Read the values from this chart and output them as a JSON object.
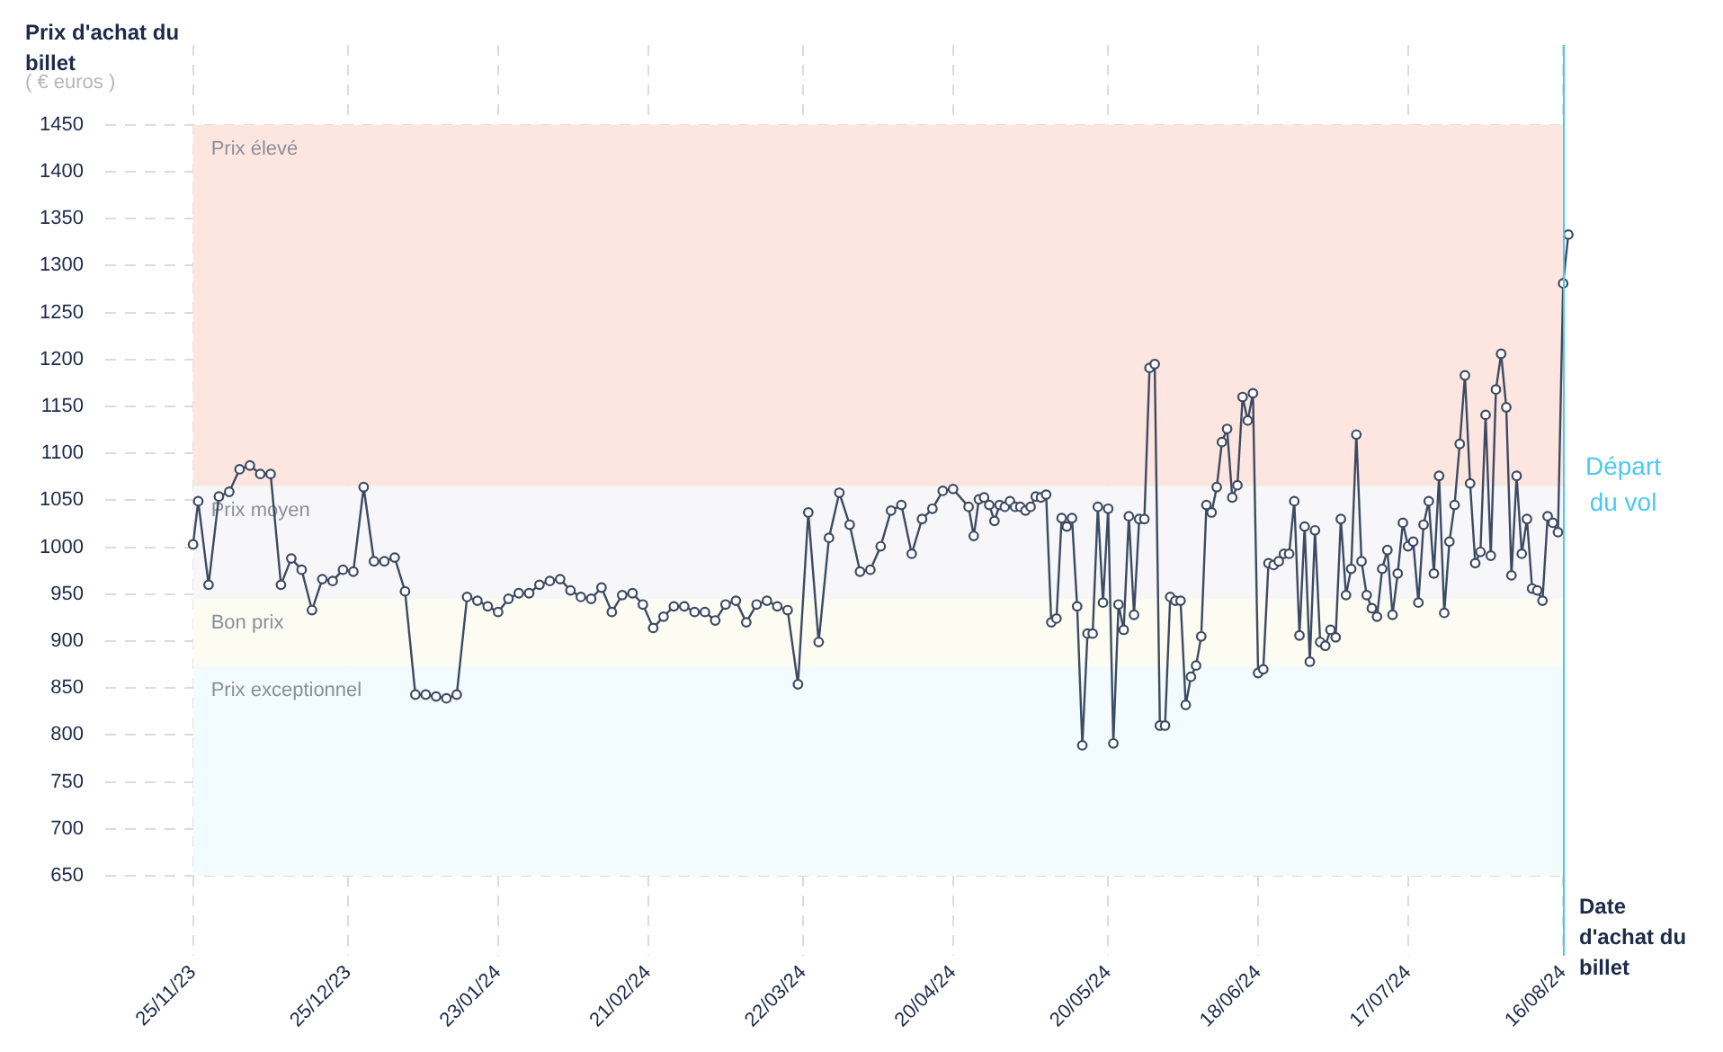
{
  "chart_data": {
    "type": "line",
    "ylabel": "Prix d'achat du billet",
    "xlabel": "Date d'achat du billet",
    "annotations": [
      "( € euros )"
    ],
    "color": "#3d4a63",
    "marker": "circle",
    "grid": true,
    "legend": false,
    "x": [
      "2023-11-25",
      "2023-11-26",
      "2023-11-28",
      "2023-11-30",
      "2023-12-02",
      "2023-12-04",
      "2023-12-06",
      "2023-12-08",
      "2023-12-10",
      "2023-12-12",
      "2023-12-14",
      "2023-12-16",
      "2023-12-18",
      "2023-12-20",
      "2023-12-22",
      "2023-12-24",
      "2023-12-26",
      "2023-12-28",
      "2023-12-30",
      "2024-01-01",
      "2024-01-03",
      "2024-01-05",
      "2024-01-07",
      "2024-01-09",
      "2024-01-11",
      "2024-01-13",
      "2024-01-15",
      "2024-01-17",
      "2024-01-19",
      "2024-01-21",
      "2024-01-23",
      "2024-01-25",
      "2024-01-27",
      "2024-01-29",
      "2024-01-31",
      "2024-02-02",
      "2024-02-04",
      "2024-02-06",
      "2024-02-08",
      "2024-02-10",
      "2024-02-12",
      "2024-02-14",
      "2024-02-16",
      "2024-02-18",
      "2024-02-20",
      "2024-02-22",
      "2024-02-24",
      "2024-02-26",
      "2024-02-28",
      "2024-03-01",
      "2024-03-03",
      "2024-03-05",
      "2024-03-07",
      "2024-03-09",
      "2024-03-11",
      "2024-03-13",
      "2024-03-15",
      "2024-03-17",
      "2024-03-19",
      "2024-03-21",
      "2024-03-23",
      "2024-03-25",
      "2024-03-27",
      "2024-03-29",
      "2024-03-31",
      "2024-04-02",
      "2024-04-04",
      "2024-04-06",
      "2024-04-08",
      "2024-04-10",
      "2024-04-12",
      "2024-04-14",
      "2024-04-16",
      "2024-04-18",
      "2024-04-20",
      "2024-04-23",
      "2024-04-24",
      "2024-04-25",
      "2024-04-26",
      "2024-04-27",
      "2024-04-28",
      "2024-04-29",
      "2024-04-30",
      "2024-05-01",
      "2024-05-02",
      "2024-05-03",
      "2024-05-04",
      "2024-05-05",
      "2024-05-06",
      "2024-05-07",
      "2024-05-08",
      "2024-05-09",
      "2024-05-10",
      "2024-05-11",
      "2024-05-12",
      "2024-05-13",
      "2024-05-14",
      "2024-05-15",
      "2024-05-16",
      "2024-05-17",
      "2024-05-18",
      "2024-05-19",
      "2024-05-20",
      "2024-05-21",
      "2024-05-22",
      "2024-05-23",
      "2024-05-24",
      "2024-05-25",
      "2024-05-26",
      "2024-05-27",
      "2024-05-28",
      "2024-05-29",
      "2024-05-30",
      "2024-05-31",
      "2024-06-01",
      "2024-06-02",
      "2024-06-03",
      "2024-06-04",
      "2024-06-05",
      "2024-06-06",
      "2024-06-07",
      "2024-06-08",
      "2024-06-09",
      "2024-06-10",
      "2024-06-11",
      "2024-06-12",
      "2024-06-13",
      "2024-06-14",
      "2024-06-15",
      "2024-06-16",
      "2024-06-17",
      "2024-06-18",
      "2024-06-19",
      "2024-06-20",
      "2024-06-21",
      "2024-06-22",
      "2024-06-23",
      "2024-06-24",
      "2024-06-25",
      "2024-06-26",
      "2024-06-27",
      "2024-06-28",
      "2024-06-29",
      "2024-06-30",
      "2024-07-01",
      "2024-07-02",
      "2024-07-03",
      "2024-07-04",
      "2024-07-05",
      "2024-07-06",
      "2024-07-07",
      "2024-07-08",
      "2024-07-09",
      "2024-07-10",
      "2024-07-11",
      "2024-07-12",
      "2024-07-13",
      "2024-07-14",
      "2024-07-15",
      "2024-07-16",
      "2024-07-17",
      "2024-07-18",
      "2024-07-19",
      "2024-07-20",
      "2024-07-21",
      "2024-07-22",
      "2024-07-23",
      "2024-07-24",
      "2024-07-25",
      "2024-07-26",
      "2024-07-27",
      "2024-07-28",
      "2024-07-29",
      "2024-07-30",
      "2024-07-31",
      "2024-08-01",
      "2024-08-02",
      "2024-08-03",
      "2024-08-04",
      "2024-08-05",
      "2024-08-06",
      "2024-08-07",
      "2024-08-08",
      "2024-08-09",
      "2024-08-10",
      "2024-08-11",
      "2024-08-12",
      "2024-08-13",
      "2024-08-14",
      "2024-08-15",
      "2024-08-16",
      "2024-08-17"
    ],
    "values": [
      1003,
      1049,
      960,
      1054,
      1059,
      1083,
      1087,
      1078,
      1078,
      960,
      988,
      976,
      933,
      966,
      964,
      976,
      974,
      1064,
      985,
      985,
      989,
      953,
      843,
      843,
      841,
      839,
      843,
      947,
      943,
      937,
      931,
      945,
      951,
      951,
      960,
      964,
      966,
      954,
      947,
      945,
      957,
      931,
      949,
      951,
      939,
      914,
      926,
      937,
      937,
      931,
      931,
      922,
      939,
      943,
      920,
      939,
      943,
      937,
      933,
      854,
      1037,
      899,
      1010,
      1058,
      1024,
      974,
      976,
      1001,
      1039,
      1045,
      993,
      1030,
      1041,
      1060,
      1062,
      1043,
      1012,
      1051,
      1053,
      1045,
      1028,
      1045,
      1043,
      1049,
      1043,
      1043,
      1039,
      1043,
      1054,
      1053,
      1056,
      920,
      924,
      1031,
      1022,
      1031,
      937,
      789,
      908,
      908,
      1043,
      941,
      1041,
      791,
      939,
      912,
      1033,
      928,
      1030,
      1030,
      1191,
      1195,
      810,
      810,
      947,
      943,
      943,
      832,
      862,
      874,
      905,
      1045,
      1037,
      1064,
      1112,
      1126,
      1053,
      1066,
      1160,
      1135,
      1164,
      866,
      870,
      983,
      981,
      985,
      993,
      993,
      1049,
      906,
      1022,
      878,
      1018,
      899,
      895,
      912,
      904,
      1030,
      949,
      977,
      1120,
      985,
      949,
      935,
      926,
      977,
      997,
      928,
      972,
      1026,
      1001,
      1006,
      941,
      1024,
      1049,
      972,
      1076,
      930,
      1006,
      1045,
      1110,
      1183,
      1068,
      983,
      995,
      1141,
      991,
      1168,
      1206,
      1149,
      970,
      1076,
      993,
      1030,
      956,
      954,
      943,
      1033,
      1026,
      1016,
      1281,
      1333
    ],
    "xlim": [
      "2023-11-08",
      "2024-08-17"
    ],
    "xticks": [
      {
        "value": "2023-11-25",
        "label": "25/11/23"
      },
      {
        "value": "2023-12-25",
        "label": "25/12/23"
      },
      {
        "value": "2024-01-23",
        "label": "23/01/24"
      },
      {
        "value": "2024-02-21",
        "label": "21/02/24"
      },
      {
        "value": "2024-03-22",
        "label": "22/03/24"
      },
      {
        "value": "2024-04-20",
        "label": "20/04/24"
      },
      {
        "value": "2024-05-20",
        "label": "20/05/24"
      },
      {
        "value": "2024-06-18",
        "label": "18/06/24"
      },
      {
        "value": "2024-07-17",
        "label": "17/07/24"
      },
      {
        "value": "2024-08-16",
        "label": "16/08/24"
      }
    ],
    "ylim": [
      565,
      1535
    ],
    "yticks": [
      650,
      700,
      750,
      800,
      850,
      900,
      950,
      1000,
      1050,
      1100,
      1150,
      1200,
      1250,
      1300,
      1350,
      1400,
      1450
    ],
    "bands": [
      {
        "axis": "y",
        "from": 1065,
        "to": 1450,
        "label": "Prix élevé",
        "color": "#fde6e0"
      },
      {
        "axis": "y",
        "from": 945,
        "to": 1065,
        "label": "Prix moyen",
        "color": "#f7f7f9"
      },
      {
        "axis": "y",
        "from": 873,
        "to": 945,
        "label": "Bon prix",
        "color": "#fcfcf3"
      },
      {
        "axis": "y",
        "from": 650,
        "to": 873,
        "label": "Prix exceptionnel",
        "color": "#f2fbfe"
      }
    ],
    "ref_lines": [
      {
        "axis": "x",
        "value": "2024-08-16",
        "label": "Départ du vol",
        "color": "#4cc9f0"
      }
    ]
  }
}
